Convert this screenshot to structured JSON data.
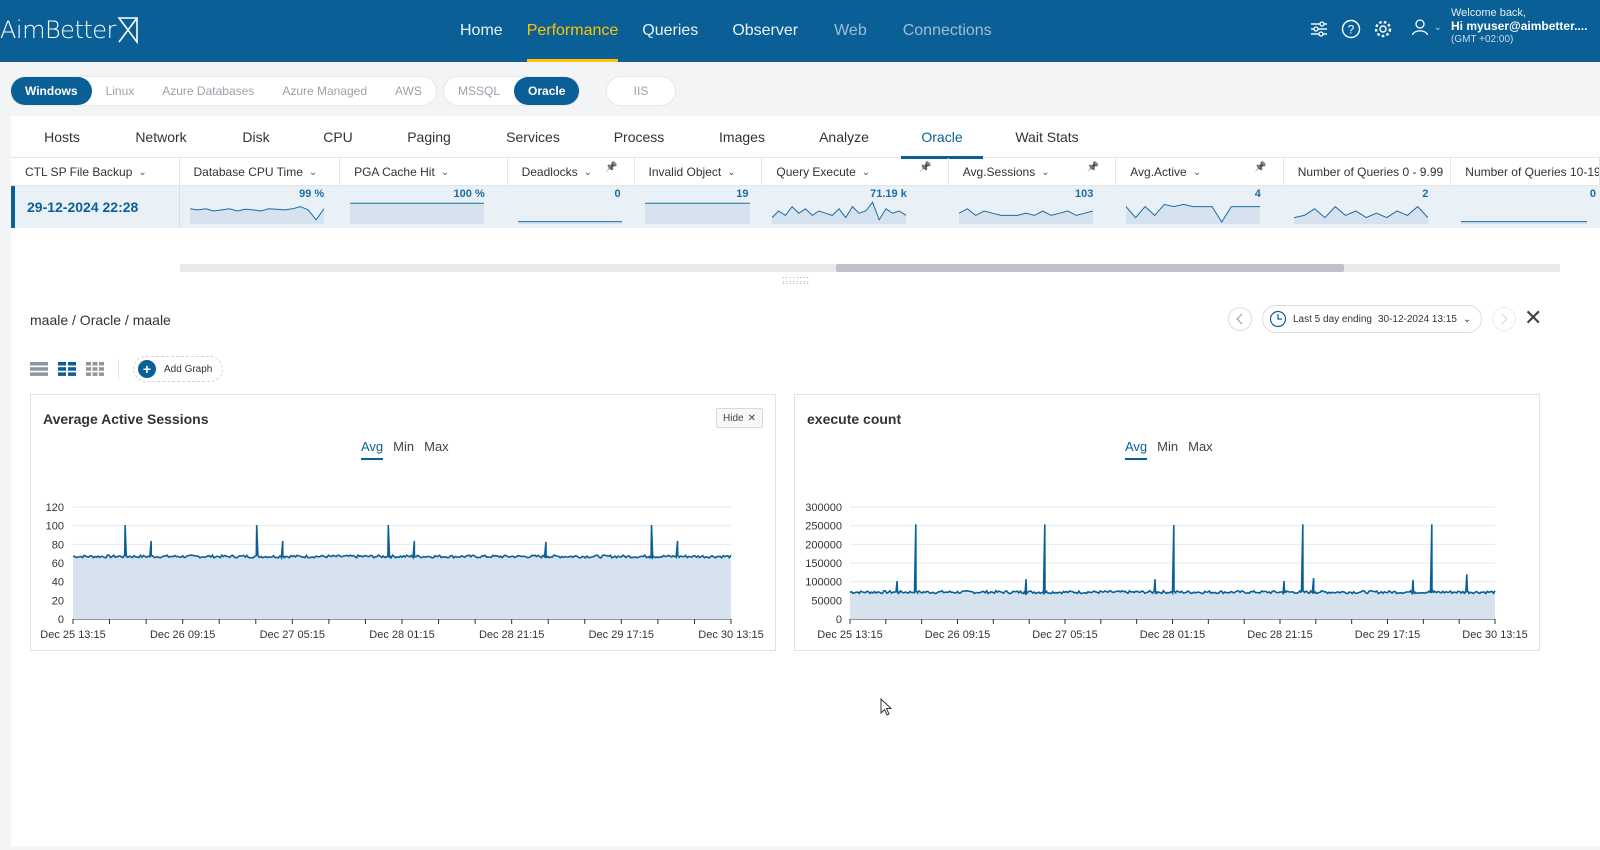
{
  "app": {
    "logo": "AimBetter"
  },
  "nav": [
    {
      "label": "Home",
      "state": "normal"
    },
    {
      "label": "Performance",
      "state": "active"
    },
    {
      "label": "Queries",
      "state": "normal"
    },
    {
      "label": "Observer",
      "state": "normal"
    },
    {
      "label": "Web",
      "state": "dim"
    },
    {
      "label": "Connections",
      "state": "dim"
    }
  ],
  "user": {
    "welcome": "Welcome back,",
    "greeting": "Hi myuser@aimbetter....",
    "timezone": "(GMT +02:00)"
  },
  "platform_pills": [
    "Windows",
    "Linux",
    "Azure Databases",
    "Azure Managed",
    "AWS"
  ],
  "platform_active": "Windows",
  "db_pills": [
    "MSSQL",
    "Oracle"
  ],
  "db_active": "Oracle",
  "web_pill": "IIS",
  "tabs": [
    "Hosts",
    "Network",
    "Disk",
    "CPU",
    "Paging",
    "Services",
    "Process",
    "Images",
    "Analyze",
    "Oracle",
    "Wait Stats"
  ],
  "active_tab": "Oracle",
  "grid": {
    "first_column": "CTL SP File Backup",
    "columns": [
      {
        "label": "Database CPU Time",
        "value": "99 %",
        "pinned": false
      },
      {
        "label": "PGA Cache Hit",
        "value": "100 %",
        "pinned": false
      },
      {
        "label": "Deadlocks",
        "value": "0",
        "pinned": true
      },
      {
        "label": "Invalid Object",
        "value": "19",
        "pinned": false
      },
      {
        "label": "Query Execute",
        "value": "71.19 k",
        "pinned": true
      },
      {
        "label": "Avg.Sessions",
        "value": "103",
        "pinned": true
      },
      {
        "label": "Avg.Active",
        "value": "4",
        "pinned": true
      },
      {
        "label": "Number of Queries 0 - 9.99",
        "value": "2",
        "pinned": false
      },
      {
        "label": "Number of Queries 10-19",
        "value": "0",
        "pinned": false
      }
    ],
    "row_date": "29-12-2024 22:28"
  },
  "detail": {
    "breadcrumb": "maale / Oracle / maale",
    "range_label": "Last 5 day ending",
    "range_end": "30-12-2024 13:15",
    "add_graph": "Add Graph"
  },
  "charts": [
    {
      "title": "Average Active Sessions",
      "hide_label": "Hide",
      "agg": [
        "Avg",
        "Min",
        "Max"
      ],
      "agg_active": "Avg"
    },
    {
      "title": "execute count",
      "agg": [
        "Avg",
        "Min",
        "Max"
      ],
      "agg_active": "Avg"
    }
  ],
  "colors": {
    "brand": "#0a5f96",
    "accent": "#ffc400",
    "series_line": "#0a5f96",
    "series_fill": "#d6e2ee"
  },
  "chart_data": [
    {
      "type": "area",
      "title": "Average Active Sessions",
      "x": [
        "Dec 25 13:15",
        "Dec 26 09:15",
        "Dec 27 05:15",
        "Dec 28 01:15",
        "Dec 28 21:15",
        "Dec 29 17:15",
        "Dec 30 13:15"
      ],
      "ylim": [
        0,
        120
      ],
      "yticks": [
        0,
        20,
        40,
        60,
        80,
        100,
        120
      ],
      "baseline": 67,
      "spikes": [
        {
          "at": "Dec 25 22:45",
          "value": 100
        },
        {
          "at": "Dec 26 03:30",
          "value": 83
        },
        {
          "at": "Dec 26 22:45",
          "value": 100
        },
        {
          "at": "Dec 27 03:30",
          "value": 83
        },
        {
          "at": "Dec 27 22:45",
          "value": 100
        },
        {
          "at": "Dec 28 03:30",
          "value": 83
        },
        {
          "at": "Dec 29 03:30",
          "value": 82
        },
        {
          "at": "Dec 29 22:45",
          "value": 100
        },
        {
          "at": "Dec 30 03:30",
          "value": 83
        }
      ]
    },
    {
      "type": "area",
      "title": "execute count",
      "x": [
        "Dec 25 13:15",
        "Dec 26 09:15",
        "Dec 27 05:15",
        "Dec 28 01:15",
        "Dec 28 21:15",
        "Dec 29 17:15",
        "Dec 30 13:15"
      ],
      "ylim": [
        0,
        300000
      ],
      "yticks": [
        0,
        50000,
        100000,
        150000,
        200000,
        250000,
        300000
      ],
      "baseline": 72000,
      "spikes": [
        {
          "at": "Dec 25 22:00",
          "value": 100000
        },
        {
          "at": "Dec 26 01:30",
          "value": 252000
        },
        {
          "at": "Dec 26 22:00",
          "value": 105000
        },
        {
          "at": "Dec 27 01:30",
          "value": 252000
        },
        {
          "at": "Dec 27 22:00",
          "value": 105000
        },
        {
          "at": "Dec 28 01:30",
          "value": 250000
        },
        {
          "at": "Dec 28 22:00",
          "value": 100000
        },
        {
          "at": "Dec 29 01:30",
          "value": 252000
        },
        {
          "at": "Dec 29 03:30",
          "value": 108000
        },
        {
          "at": "Dec 29 22:00",
          "value": 103000
        },
        {
          "at": "Dec 30 01:30",
          "value": 252000
        },
        {
          "at": "Dec 30 08:00",
          "value": 118000
        }
      ]
    }
  ]
}
